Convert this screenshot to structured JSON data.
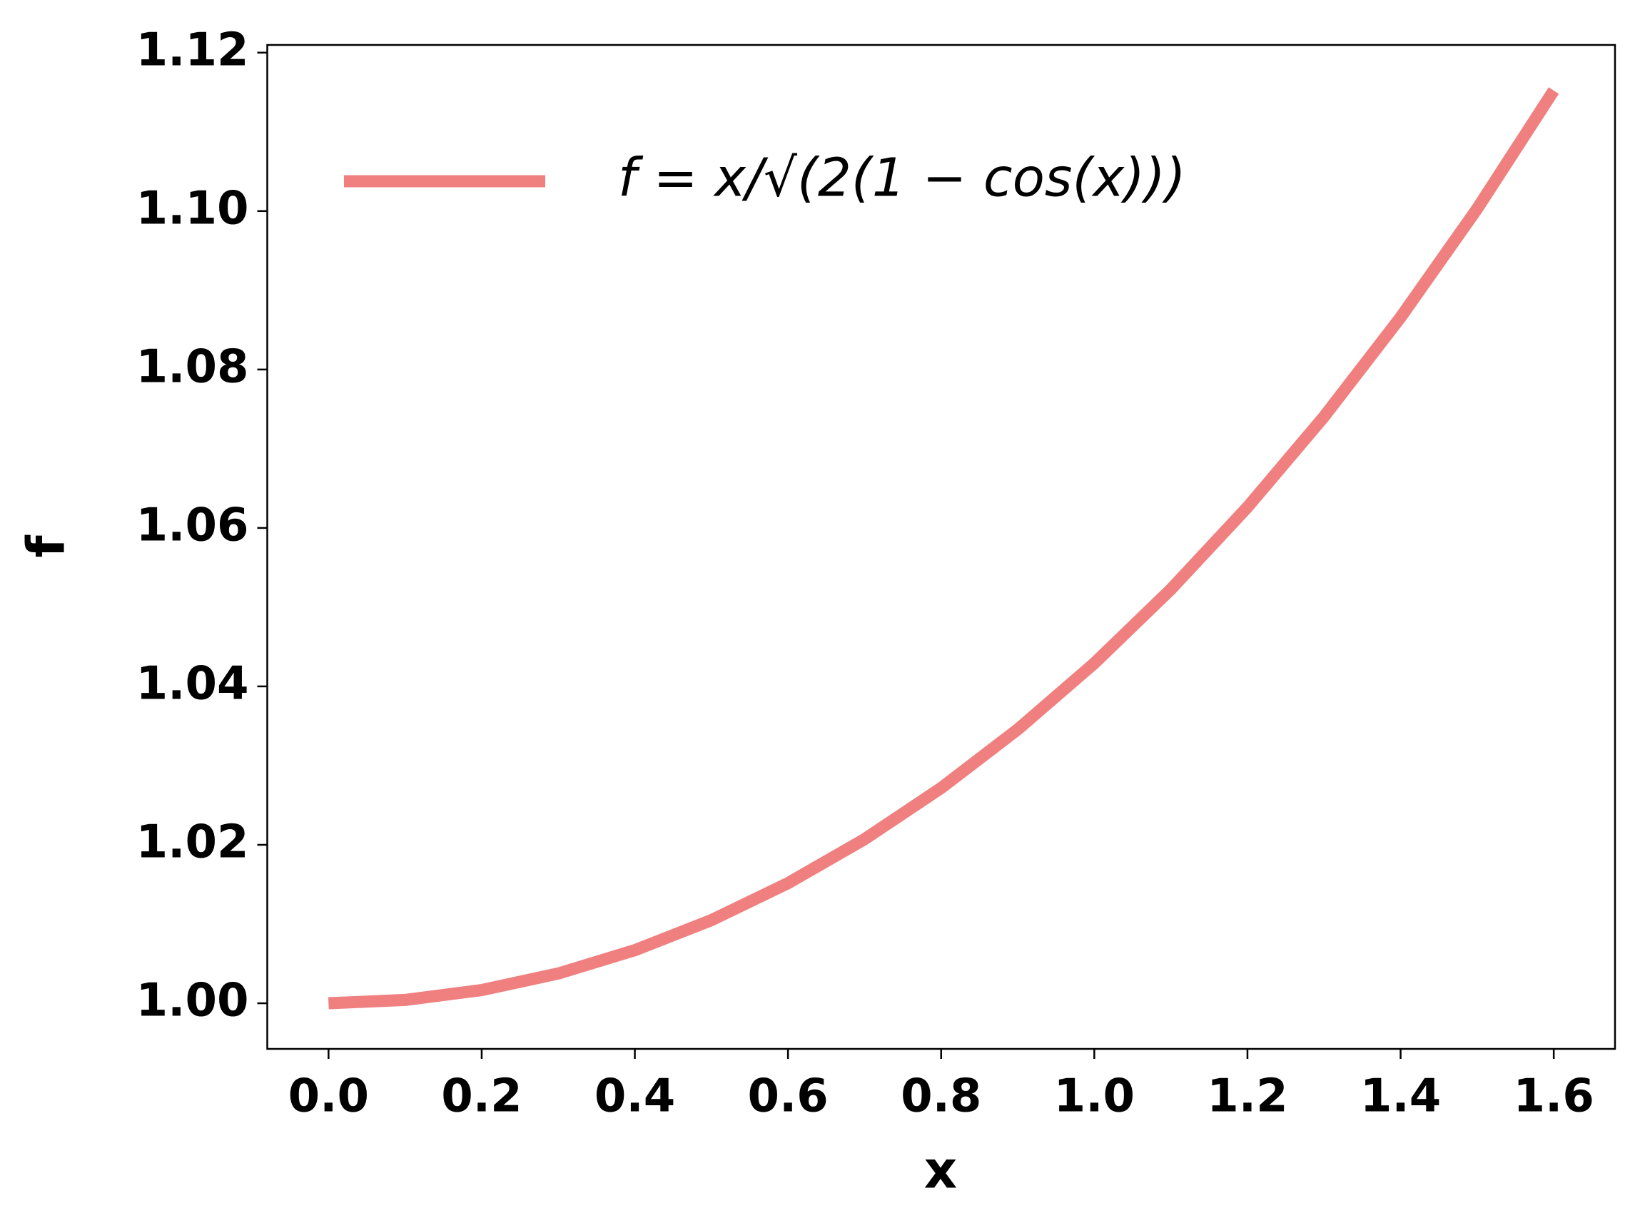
{
  "chart_data": {
    "type": "line",
    "x_label": "x",
    "y_label": "f",
    "x": [
      0,
      0.1,
      0.2,
      0.3,
      0.4,
      0.5,
      0.6,
      0.7,
      0.8,
      0.9,
      1.0,
      1.1,
      1.2,
      1.3,
      1.4,
      1.5,
      1.6
    ],
    "series": [
      {
        "name": "f = x/√(2(1 − cos(x)))",
        "color": "#f08080",
        "values": [
          1.0,
          1.000417,
          1.001668,
          1.003757,
          1.006698,
          1.010493,
          1.015159,
          1.020712,
          1.027173,
          1.034566,
          1.042915,
          1.052251,
          1.062621,
          1.074046,
          1.08659,
          1.100297,
          1.115214
        ]
      }
    ],
    "xlim": [
      -0.08,
      1.68
    ],
    "ylim": [
      0.99424,
      1.12097
    ],
    "xticks": [
      {
        "value": 0,
        "label": "0.0"
      },
      0.2,
      0.4,
      0.6,
      0.8,
      {
        "value": 1,
        "label": "1.0"
      },
      1.2,
      1.4,
      1.6
    ],
    "yticks": [
      {
        "value": 1,
        "label": "1.00"
      },
      1.02,
      1.04,
      1.06,
      1.08,
      {
        "value": 1.1,
        "label": "1.10"
      },
      1.12
    ],
    "grid": false,
    "legend": "upper left"
  }
}
